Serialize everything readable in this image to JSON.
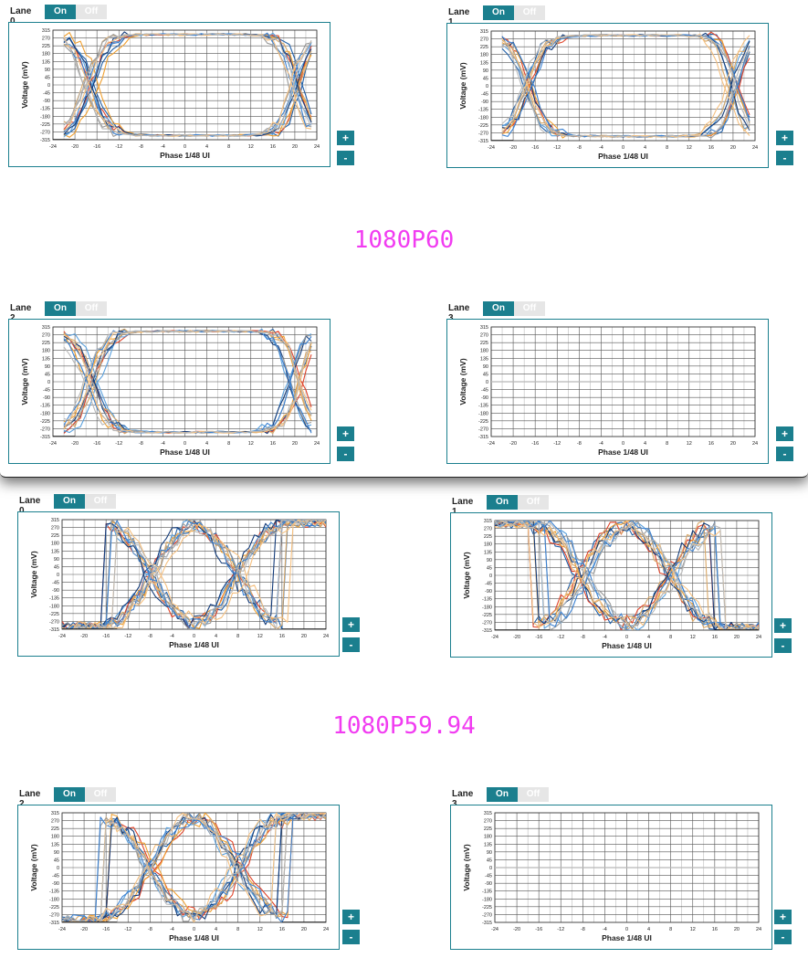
{
  "sections": [
    {
      "resolution": "1080P60",
      "lanes": [
        {
          "label": "Lane 0",
          "on": "On",
          "off": "Off",
          "type": "eye-wide"
        },
        {
          "label": "Lane 1",
          "on": "On",
          "off": "Off",
          "type": "eye-wide"
        },
        {
          "label": "Lane 2",
          "on": "On",
          "off": "Off",
          "type": "eye-wide"
        },
        {
          "label": "Lane 3",
          "on": "On",
          "off": "Off",
          "type": "flat"
        }
      ]
    },
    {
      "resolution": "1080P59.94",
      "lanes": [
        {
          "label": "Lane 0",
          "on": "On",
          "off": "Off",
          "type": "eye-closed"
        },
        {
          "label": "Lane 1",
          "on": "On",
          "off": "Off",
          "type": "eye-closed"
        },
        {
          "label": "Lane 2",
          "on": "On",
          "off": "Off",
          "type": "eye-closed"
        },
        {
          "label": "Lane 3",
          "on": "On",
          "off": "Off",
          "type": "flat"
        }
      ]
    }
  ],
  "zoom": {
    "plus": "+",
    "minus": "-"
  },
  "chart_data": {
    "type": "line",
    "xlabel": "Phase 1/48 UI",
    "ylabel": "Voltage (mV)",
    "xlim": [
      -24,
      24
    ],
    "ylim": [
      -315,
      315
    ],
    "x_ticks": [
      "-24",
      "-20",
      "-16",
      "-12",
      "-8",
      "-4",
      "0",
      "4",
      "8",
      "12",
      "16",
      "20",
      "24"
    ],
    "y_ticks": [
      "315",
      "270",
      "225",
      "180",
      "135",
      "90",
      "45",
      "0",
      "-45",
      "-90",
      "-135",
      "-180",
      "-225",
      "-270",
      "-315"
    ],
    "grid": true,
    "series_colors": [
      "#1f5fa8",
      "#e0442a",
      "#f0a030",
      "#5aa0dd",
      "#d9a868",
      "#143c7a",
      "#9a9a9a",
      "#3c82d2",
      "#f5c080",
      "#b8b8b8"
    ],
    "eye_wide": {
      "left_crossing": -17,
      "right_crossing": 20,
      "level": 290
    },
    "eye_closed": {
      "left_crossing": -12,
      "right_crossing": 11,
      "center": 0,
      "level": 280
    },
    "flat": {
      "value": 0
    }
  }
}
